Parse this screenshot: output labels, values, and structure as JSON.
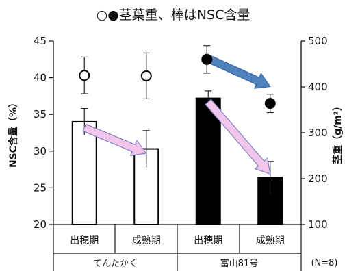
{
  "chart_data": {
    "type": "bar",
    "title": "○●茎葉重、棒はNSC含量",
    "ylabel": "NSC含量（%）",
    "y2label": "茎重（g/m²）",
    "ylim": [
      20,
      45
    ],
    "y2lim": [
      100,
      500
    ],
    "yticks": [
      20,
      25,
      30,
      35,
      40,
      45
    ],
    "y2ticks": [
      100,
      200,
      300,
      400,
      500
    ],
    "categories": [
      "出穂期",
      "成熟期",
      "出穂期",
      "成熟期"
    ],
    "groups": [
      {
        "name": "てんたかく",
        "indices": [
          0,
          1
        ]
      },
      {
        "name": "富山81号",
        "indices": [
          2,
          3
        ]
      }
    ],
    "note": "(N=8)",
    "series": [
      {
        "name": "NSC含量",
        "axis": "left",
        "kind": "bar",
        "values": [
          34.0,
          30.3,
          37.2,
          26.4
        ],
        "errors": [
          1.8,
          2.5,
          1.0,
          2.2
        ],
        "fills": [
          "#ffffff",
          "#ffffff",
          "#000000",
          "#000000"
        ]
      },
      {
        "name": "茎葉重",
        "axis": "right",
        "kind": "marker",
        "values": [
          425,
          424,
          460,
          364
        ],
        "errors": [
          40,
          50,
          30,
          20
        ],
        "fills": [
          "#ffffff",
          "#ffffff",
          "#000000",
          "#000000"
        ]
      }
    ],
    "arrows": [
      {
        "color": "#f2c6ea",
        "stroke": "#7f7fc4",
        "from": [
          0,
          33.2
        ],
        "to": [
          1,
          29.7
        ]
      },
      {
        "color": "#f2c6ea",
        "stroke": "#7f7fc4",
        "from": [
          2,
          36.7
        ],
        "to": [
          3,
          26.9
        ]
      },
      {
        "color": "#4f81bd",
        "stroke": "#3a6aa6",
        "from": [
          2,
          42.6
        ],
        "to": [
          3,
          38.8
        ]
      }
    ],
    "grid": false,
    "legend": "none"
  }
}
